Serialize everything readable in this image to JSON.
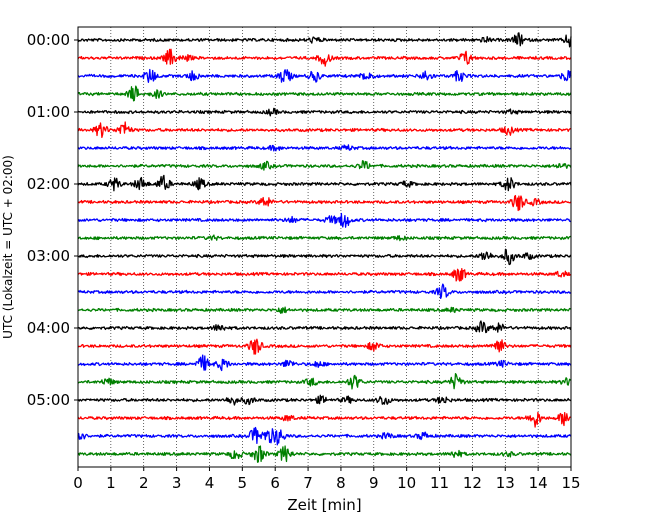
{
  "chart_data": {
    "type": "line",
    "title": "",
    "xlabel": "Zeit  [min]",
    "ylabel": "UTC (Lokalzeit = UTC + 02:00)",
    "xlim": [
      0,
      15
    ],
    "x_ticks": [
      "0",
      "1",
      "2",
      "3",
      "4",
      "5",
      "6",
      "7",
      "8",
      "9",
      "10",
      "11",
      "12",
      "13",
      "14",
      "15"
    ],
    "x_grid": "dotted vertical at each minute",
    "row_tick_labels": [
      "00:00",
      "01:00",
      "02:00",
      "03:00",
      "04:00",
      "05:00"
    ],
    "rows_per_hour": 4,
    "minutes_per_row": 15,
    "color_cycle": [
      "#000000",
      "#ff0000",
      "#0000ff",
      "#008000"
    ],
    "traces": [
      {
        "start": "00:00",
        "events": [
          [
            12.4,
            0.25
          ],
          [
            13.4,
            0.7
          ],
          [
            15.0,
            0.9
          ],
          [
            7.2,
            0.3
          ]
        ]
      },
      {
        "start": "00:15",
        "events": [
          [
            2.8,
            0.9
          ],
          [
            7.5,
            0.8
          ],
          [
            11.8,
            0.8
          ],
          [
            3.3,
            0.3
          ]
        ]
      },
      {
        "start": "00:30",
        "events": [
          [
            2.2,
            0.8
          ],
          [
            3.5,
            0.5
          ],
          [
            6.3,
            0.9
          ],
          [
            7.2,
            0.6
          ],
          [
            8.8,
            0.6
          ],
          [
            10.6,
            0.6
          ],
          [
            11.6,
            0.6
          ],
          [
            14.9,
            0.7
          ]
        ]
      },
      {
        "start": "00:45",
        "events": [
          [
            1.7,
            0.9
          ],
          [
            2.4,
            0.4
          ]
        ]
      },
      {
        "start": "01:00",
        "events": [
          [
            5.9,
            0.3
          ],
          [
            13.2,
            0.2
          ]
        ]
      },
      {
        "start": "01:15",
        "events": [
          [
            0.7,
            0.8
          ],
          [
            1.4,
            0.9
          ],
          [
            13.1,
            0.5
          ]
        ]
      },
      {
        "start": "01:30",
        "events": [
          [
            6.0,
            0.25
          ],
          [
            8.2,
            0.25
          ]
        ]
      },
      {
        "start": "01:45",
        "events": [
          [
            5.7,
            0.4
          ],
          [
            8.7,
            0.5
          ],
          [
            14.7,
            0.3
          ]
        ]
      },
      {
        "start": "02:00",
        "events": [
          [
            1.1,
            0.7
          ],
          [
            1.9,
            0.7
          ],
          [
            2.6,
            0.9
          ],
          [
            3.7,
            0.6
          ],
          [
            10.0,
            0.3
          ],
          [
            13.1,
            0.8
          ]
        ]
      },
      {
        "start": "02:15",
        "events": [
          [
            5.7,
            0.6
          ],
          [
            13.4,
            1.0
          ],
          [
            13.9,
            0.3
          ]
        ]
      },
      {
        "start": "02:30",
        "events": [
          [
            6.5,
            0.3
          ],
          [
            8.1,
            0.9
          ],
          [
            7.7,
            0.4
          ]
        ]
      },
      {
        "start": "02:45",
        "events": [
          [
            4.1,
            0.2
          ],
          [
            9.8,
            0.2
          ]
        ]
      },
      {
        "start": "03:00",
        "events": [
          [
            12.4,
            0.6
          ],
          [
            13.1,
            0.9
          ],
          [
            13.7,
            0.3
          ]
        ]
      },
      {
        "start": "03:15",
        "events": [
          [
            11.6,
            0.9
          ],
          [
            14.7,
            0.3
          ]
        ]
      },
      {
        "start": "03:30",
        "events": [
          [
            11.1,
            0.8
          ]
        ]
      },
      {
        "start": "03:45",
        "events": [
          [
            6.2,
            0.3
          ],
          [
            11.4,
            0.2
          ]
        ]
      },
      {
        "start": "04:00",
        "events": [
          [
            4.3,
            0.4
          ],
          [
            12.3,
            0.7
          ],
          [
            12.8,
            0.5
          ]
        ]
      },
      {
        "start": "04:15",
        "events": [
          [
            5.4,
            1.0
          ],
          [
            9.0,
            0.5
          ],
          [
            12.8,
            0.9
          ]
        ]
      },
      {
        "start": "04:30",
        "events": [
          [
            3.8,
            0.9
          ],
          [
            4.4,
            0.6
          ],
          [
            6.4,
            0.4
          ],
          [
            7.3,
            0.3
          ],
          [
            12.9,
            0.3
          ]
        ]
      },
      {
        "start": "04:45",
        "events": [
          [
            0.9,
            0.4
          ],
          [
            7.1,
            0.4
          ],
          [
            8.4,
            0.8
          ],
          [
            11.5,
            0.9
          ],
          [
            14.9,
            0.4
          ]
        ]
      },
      {
        "start": "05:00",
        "events": [
          [
            4.7,
            0.5
          ],
          [
            5.2,
            0.4
          ],
          [
            7.4,
            0.4
          ],
          [
            8.2,
            0.3
          ],
          [
            9.3,
            0.6
          ],
          [
            11.1,
            0.4
          ]
        ]
      },
      {
        "start": "05:15",
        "events": [
          [
            6.4,
            0.3
          ],
          [
            13.9,
            1.0
          ],
          [
            14.8,
            0.8
          ]
        ]
      },
      {
        "start": "05:30",
        "events": [
          [
            0.0,
            0.8
          ],
          [
            5.4,
            0.9
          ],
          [
            5.8,
            0.7
          ],
          [
            6.1,
            0.9
          ],
          [
            9.4,
            0.3
          ],
          [
            10.5,
            0.4
          ]
        ]
      },
      {
        "start": "05:45",
        "events": [
          [
            4.8,
            0.6
          ],
          [
            5.5,
            1.0
          ],
          [
            6.3,
            0.9
          ],
          [
            11.5,
            0.4
          ],
          [
            13.1,
            0.2
          ]
        ]
      }
    ]
  }
}
